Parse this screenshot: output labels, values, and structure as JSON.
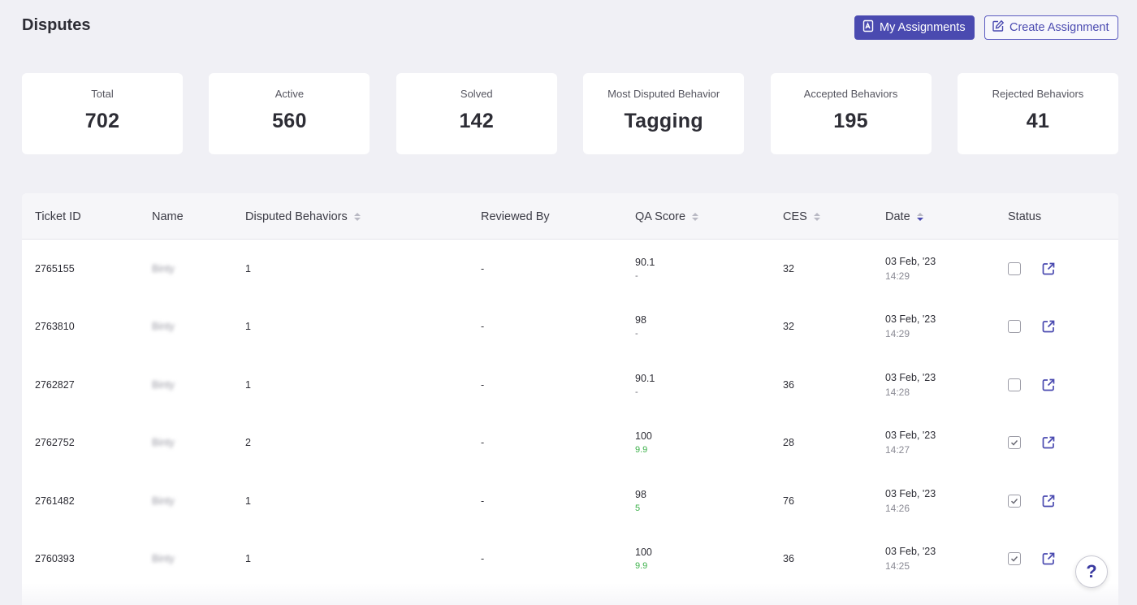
{
  "header": {
    "title": "Disputes",
    "my_assignments_label": "My Assignments",
    "create_assignment_label": "Create Assignment"
  },
  "stats": [
    {
      "label": "Total",
      "value": "702"
    },
    {
      "label": "Active",
      "value": "560"
    },
    {
      "label": "Solved",
      "value": "142"
    },
    {
      "label": "Most Disputed Behavior",
      "value": "Tagging"
    },
    {
      "label": "Accepted Behaviors",
      "value": "195"
    },
    {
      "label": "Rejected Behaviors",
      "value": "41"
    }
  ],
  "table": {
    "columns": {
      "ticket_id": "Ticket ID",
      "name": "Name",
      "disputed_behaviors": "Disputed Behaviors",
      "reviewed_by": "Reviewed By",
      "qa_score": "QA Score",
      "ces": "CES",
      "date": "Date",
      "status": "Status"
    },
    "rows": [
      {
        "ticket_id": "2765155",
        "name": "Binty",
        "disputed": "1",
        "reviewed_by": "-",
        "qa_score": "90.1",
        "qa_sub": "-",
        "qa_sub_color": "#6b6b75",
        "ces": "32",
        "date": "03 Feb, '23",
        "time": "14:29",
        "checked": false
      },
      {
        "ticket_id": "2763810",
        "name": "Binty",
        "disputed": "1",
        "reviewed_by": "-",
        "qa_score": "98",
        "qa_sub": "-",
        "qa_sub_color": "#6b6b75",
        "ces": "32",
        "date": "03 Feb, '23",
        "time": "14:29",
        "checked": false
      },
      {
        "ticket_id": "2762827",
        "name": "Binty",
        "disputed": "1",
        "reviewed_by": "-",
        "qa_score": "90.1",
        "qa_sub": "-",
        "qa_sub_color": "#6b6b75",
        "ces": "36",
        "date": "03 Feb, '23",
        "time": "14:28",
        "checked": false
      },
      {
        "ticket_id": "2762752",
        "name": "Binty",
        "disputed": "2",
        "reviewed_by": "-",
        "qa_score": "100",
        "qa_sub": "9.9",
        "qa_sub_color": "#3cb14a",
        "ces": "28",
        "date": "03 Feb, '23",
        "time": "14:27",
        "checked": true
      },
      {
        "ticket_id": "2761482",
        "name": "Binty",
        "disputed": "1",
        "reviewed_by": "-",
        "qa_score": "98",
        "qa_sub": "5",
        "qa_sub_color": "#3cb14a",
        "ces": "76",
        "date": "03 Feb, '23",
        "time": "14:26",
        "checked": true
      },
      {
        "ticket_id": "2760393",
        "name": "Binty",
        "disputed": "1",
        "reviewed_by": "-",
        "qa_score": "100",
        "qa_sub": "9.9",
        "qa_sub_color": "#3cb14a",
        "ces": "36",
        "date": "03 Feb, '23",
        "time": "14:25",
        "checked": true
      }
    ]
  },
  "help": {
    "label": "?"
  },
  "colors": {
    "accent": "#4a4ab0",
    "positive": "#3cb14a",
    "background": "#f0f0f5"
  },
  "icons": {
    "my_assignments": "assignment-icon",
    "create_assignment": "edit-icon",
    "row_open": "external-link-icon",
    "status": "checkbox-icon"
  }
}
